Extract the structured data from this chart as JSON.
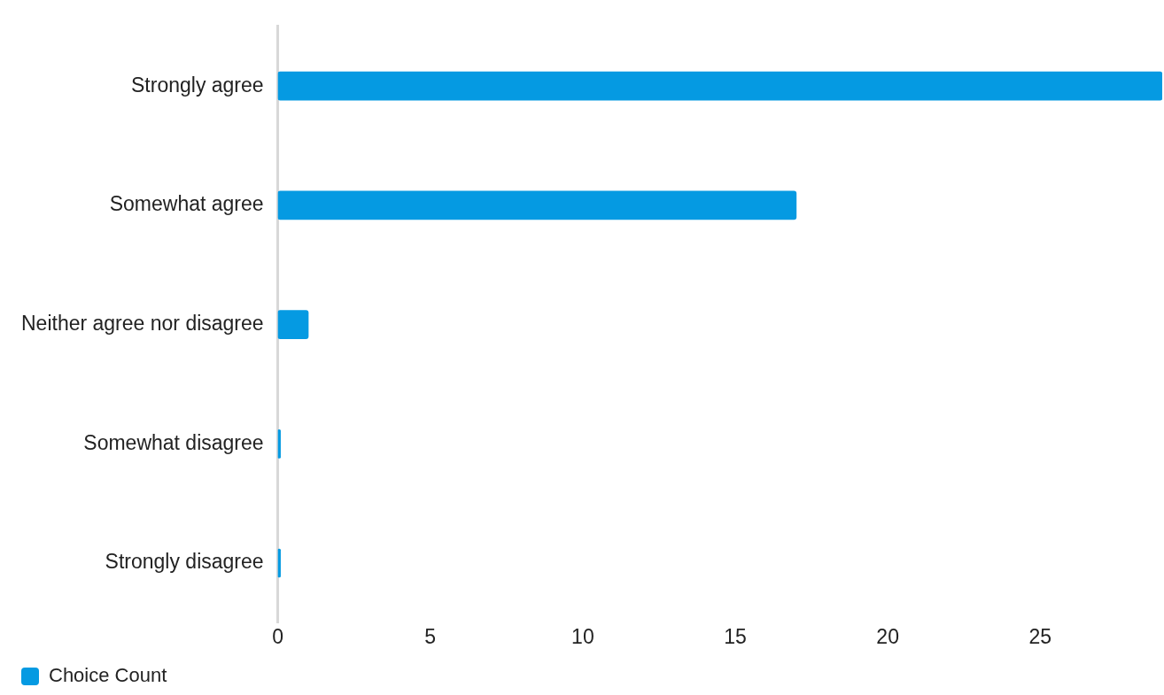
{
  "chart_data": {
    "type": "bar",
    "orientation": "horizontal",
    "categories": [
      "Strongly agree",
      "Somewhat agree",
      "Neither agree nor disagree",
      "Somewhat disagree",
      "Strongly disagree"
    ],
    "series": [
      {
        "name": "Choice Count",
        "color": "#059ae2",
        "values": [
          29,
          17,
          1,
          0,
          0
        ]
      }
    ],
    "xlim": [
      0,
      29
    ],
    "xticks": [
      0,
      5,
      10,
      15,
      20,
      25
    ],
    "legend": "bottom left"
  }
}
